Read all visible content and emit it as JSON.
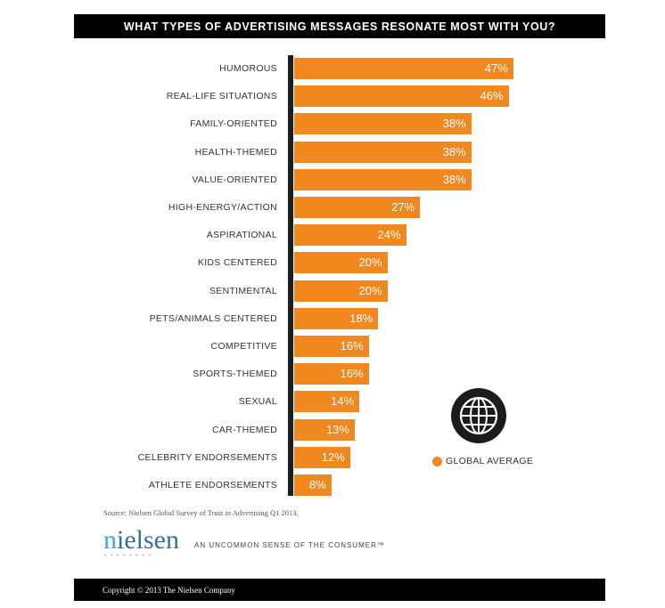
{
  "chart_data": {
    "type": "bar",
    "orientation": "horizontal",
    "title": "WHAT TYPES OF ADVERTISING MESSAGES RESONATE MOST WITH YOU?",
    "categories": [
      "HUMOROUS",
      "REAL-LIFE SITUATIONS",
      "FAMILY-ORIENTED",
      "HEALTH-THEMED",
      "VALUE-ORIENTED",
      "HIGH-ENERGY/ACTION",
      "ASPIRATIONAL",
      "KIDS CENTERED",
      "SENTIMENTAL",
      "PETS/ANIMALS CENTERED",
      "COMPETITIVE",
      "SPORTS-THEMED",
      "SEXUAL",
      "CAR-THEMED",
      "CELEBRITY ENDORSEMENTS",
      "ATHLETE ENDORSEMENTS"
    ],
    "series": [
      {
        "name": "GLOBAL AVERAGE",
        "color": "#f0871f",
        "values": [
          47,
          46,
          38,
          38,
          38,
          27,
          24,
          20,
          20,
          18,
          16,
          16,
          14,
          13,
          12,
          8
        ]
      }
    ],
    "value_labels": [
      "47%",
      "46%",
      "38%",
      "38%",
      "38%",
      "27%",
      "24%",
      "20%",
      "20%",
      "18%",
      "16%",
      "16%",
      "14%",
      "13%",
      "12%",
      "8%"
    ],
    "xlabel": "",
    "ylabel": "",
    "grid": false,
    "legend_position": "right-bottom"
  },
  "header": {
    "title": "WHAT TYPES OF ADVERTISING MESSAGES RESONATE MOST WITH YOU?"
  },
  "legend": {
    "label": "GLOBAL AVERAGE",
    "icon": "globe-icon"
  },
  "source": "Source: Nielsen Global Survey of Trust in Advertising Q1 2013.",
  "branding": {
    "logo_first": "n",
    "logo_rest": "ielsen",
    "tagline": "AN UNCOMMON SENSE OF THE CONSUMER™"
  },
  "footer": {
    "copyright": "Copyright © 2013 The Nielsen Company"
  },
  "colors": {
    "bar": "#f0871f",
    "header_bg": "#000000",
    "axis": "#1e1e1e"
  }
}
